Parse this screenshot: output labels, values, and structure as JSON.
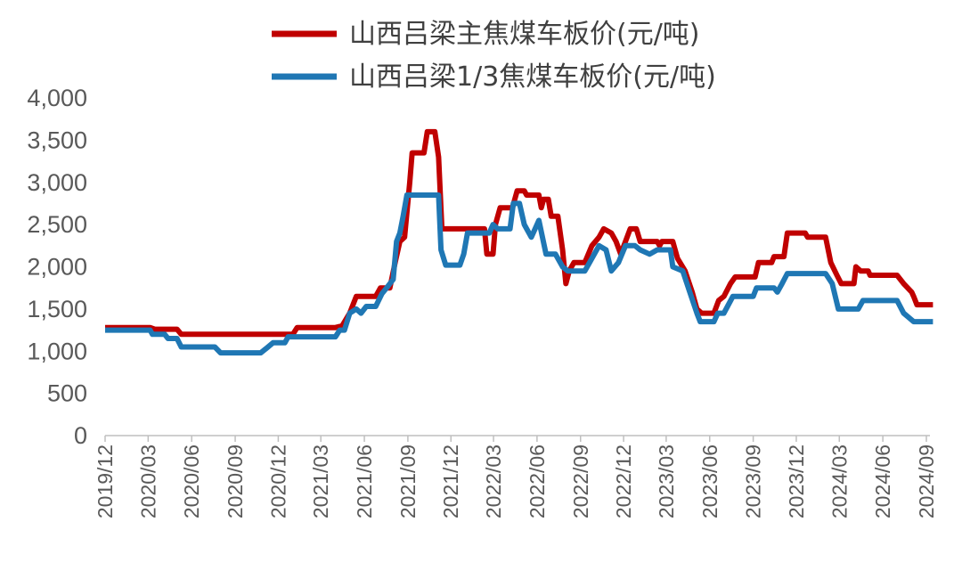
{
  "chart_data": {
    "type": "line",
    "title": "",
    "xlabel": "",
    "ylabel": "",
    "ylim": [
      0,
      4000
    ],
    "yticks": [
      0,
      500,
      1000,
      1500,
      2000,
      2500,
      3000,
      3500,
      4000
    ],
    "ytick_labels": [
      "0",
      "500",
      "1,000",
      "1,500",
      "2,000",
      "2,500",
      "3,000",
      "3,500",
      "4,000"
    ],
    "x_start": "2019/12",
    "x_end": "2024/09",
    "xticks": [
      "2019/12",
      "2020/03",
      "2020/06",
      "2020/09",
      "2020/12",
      "2021/03",
      "2021/06",
      "2021/09",
      "2021/12",
      "2022/03",
      "2022/06",
      "2022/09",
      "2022/12",
      "2023/03",
      "2023/06",
      "2023/09",
      "2023/12",
      "2024/03",
      "2024/06",
      "2024/09"
    ],
    "legend_position": "top",
    "grid": false,
    "series": [
      {
        "name": "山西吕梁主焦煤车板价(元/吨)",
        "color": "#C00000",
        "points": [
          [
            "2019/12/01",
            1280
          ],
          [
            "2020/03/05",
            1280
          ],
          [
            "2020/03/15",
            1260
          ],
          [
            "2020/05/01",
            1260
          ],
          [
            "2020/05/10",
            1200
          ],
          [
            "2021/01/01",
            1200
          ],
          [
            "2021/01/10",
            1280
          ],
          [
            "2021/04/01",
            1280
          ],
          [
            "2021/04/15",
            1300
          ],
          [
            "2021/05/01",
            1450
          ],
          [
            "2021/05/15",
            1650
          ],
          [
            "2021/06/25",
            1650
          ],
          [
            "2021/07/05",
            1750
          ],
          [
            "2021/07/25",
            1750
          ],
          [
            "2021/08/05",
            2050
          ],
          [
            "2021/08/15",
            2300
          ],
          [
            "2021/08/25",
            2350
          ],
          [
            "2021/09/05",
            3000
          ],
          [
            "2021/09/10",
            3350
          ],
          [
            "2021/10/05",
            3350
          ],
          [
            "2021/10/12",
            3600
          ],
          [
            "2021/10/28",
            3600
          ],
          [
            "2021/11/05",
            3300
          ],
          [
            "2021/11/12",
            2450
          ],
          [
            "2022/02/10",
            2450
          ],
          [
            "2022/02/15",
            2150
          ],
          [
            "2022/02/28",
            2150
          ],
          [
            "2022/03/05",
            2500
          ],
          [
            "2022/03/15",
            2700
          ],
          [
            "2022/04/10",
            2700
          ],
          [
            "2022/04/20",
            2900
          ],
          [
            "2022/05/05",
            2900
          ],
          [
            "2022/05/10",
            2850
          ],
          [
            "2022/06/05",
            2850
          ],
          [
            "2022/06/10",
            2700
          ],
          [
            "2022/06/15",
            2800
          ],
          [
            "2022/06/25",
            2800
          ],
          [
            "2022/07/01",
            2600
          ],
          [
            "2022/07/15",
            2600
          ],
          [
            "2022/07/25",
            2200
          ],
          [
            "2022/08/01",
            1800
          ],
          [
            "2022/08/08",
            1950
          ],
          [
            "2022/08/18",
            2050
          ],
          [
            "2022/09/10",
            2050
          ],
          [
            "2022/09/25",
            2250
          ],
          [
            "2022/10/10",
            2350
          ],
          [
            "2022/10/20",
            2450
          ],
          [
            "2022/11/05",
            2400
          ],
          [
            "2022/11/15",
            2300
          ],
          [
            "2022/11/25",
            2150
          ],
          [
            "2022/12/05",
            2300
          ],
          [
            "2022/12/15",
            2450
          ],
          [
            "2022/12/28",
            2450
          ],
          [
            "2023/01/05",
            2300
          ],
          [
            "2023/02/10",
            2300
          ],
          [
            "2023/02/15",
            2250
          ],
          [
            "2023/02/20",
            2300
          ],
          [
            "2023/03/15",
            2300
          ],
          [
            "2023/03/25",
            2100
          ],
          [
            "2023/04/10",
            1950
          ],
          [
            "2023/04/25",
            1700
          ],
          [
            "2023/05/05",
            1500
          ],
          [
            "2023/05/15",
            1450
          ],
          [
            "2023/06/10",
            1450
          ],
          [
            "2023/06/20",
            1600
          ],
          [
            "2023/07/01",
            1650
          ],
          [
            "2023/07/15",
            1800
          ],
          [
            "2023/07/25",
            1880
          ],
          [
            "2023/09/05",
            1880
          ],
          [
            "2023/09/12",
            2050
          ],
          [
            "2023/10/10",
            2050
          ],
          [
            "2023/10/15",
            2120
          ],
          [
            "2023/11/05",
            2120
          ],
          [
            "2023/11/12",
            2400
          ],
          [
            "2023/12/20",
            2400
          ],
          [
            "2023/12/25",
            2350
          ],
          [
            "2024/02/01",
            2350
          ],
          [
            "2024/02/12",
            2050
          ],
          [
            "2024/02/25",
            1900
          ],
          [
            "2024/03/05",
            1800
          ],
          [
            "2024/04/01",
            1800
          ],
          [
            "2024/04/05",
            2000
          ],
          [
            "2024/04/15",
            1950
          ],
          [
            "2024/05/01",
            1950
          ],
          [
            "2024/05/05",
            1900
          ],
          [
            "2024/07/01",
            1900
          ],
          [
            "2024/07/15",
            1800
          ],
          [
            "2024/08/01",
            1700
          ],
          [
            "2024/08/05",
            1650
          ],
          [
            "2024/08/12",
            1550
          ],
          [
            "2024/09/15",
            1550
          ]
        ]
      },
      {
        "name": "山西吕梁1/3焦煤车板价(元/吨)",
        "color": "#1F77B4",
        "points": [
          [
            "2019/12/01",
            1250
          ],
          [
            "2020/03/05",
            1250
          ],
          [
            "2020/03/10",
            1200
          ],
          [
            "2020/04/05",
            1200
          ],
          [
            "2020/04/12",
            1150
          ],
          [
            "2020/05/01",
            1150
          ],
          [
            "2020/05/10",
            1050
          ],
          [
            "2020/07/20",
            1050
          ],
          [
            "2020/08/01",
            980
          ],
          [
            "2020/10/25",
            980
          ],
          [
            "2020/11/05",
            1030
          ],
          [
            "2020/11/20",
            1100
          ],
          [
            "2020/12/15",
            1100
          ],
          [
            "2020/12/22",
            1170
          ],
          [
            "2021/04/01",
            1170
          ],
          [
            "2021/04/10",
            1250
          ],
          [
            "2021/04/20",
            1250
          ],
          [
            "2021/05/01",
            1450
          ],
          [
            "2021/05/15",
            1500
          ],
          [
            "2021/05/25",
            1450
          ],
          [
            "2021/06/05",
            1530
          ],
          [
            "2021/06/25",
            1530
          ],
          [
            "2021/07/08",
            1680
          ],
          [
            "2021/07/18",
            1750
          ],
          [
            "2021/08/01",
            1850
          ],
          [
            "2021/08/08",
            2300
          ],
          [
            "2021/08/15",
            2400
          ],
          [
            "2021/08/22",
            2600
          ],
          [
            "2021/08/30",
            2850
          ],
          [
            "2021/11/05",
            2850
          ],
          [
            "2021/11/10",
            2200
          ],
          [
            "2021/11/20",
            2020
          ],
          [
            "2021/12/20",
            2020
          ],
          [
            "2021/12/28",
            2150
          ],
          [
            "2022/01/05",
            2400
          ],
          [
            "2022/02/20",
            2400
          ],
          [
            "2022/02/28",
            2500
          ],
          [
            "2022/03/10",
            2450
          ],
          [
            "2022/04/05",
            2450
          ],
          [
            "2022/04/12",
            2750
          ],
          [
            "2022/04/25",
            2750
          ],
          [
            "2022/05/05",
            2500
          ],
          [
            "2022/05/20",
            2350
          ],
          [
            "2022/06/05",
            2550
          ],
          [
            "2022/06/20",
            2150
          ],
          [
            "2022/07/10",
            2150
          ],
          [
            "2022/07/25",
            2000
          ],
          [
            "2022/08/05",
            1950
          ],
          [
            "2022/09/10",
            1950
          ],
          [
            "2022/09/20",
            2050
          ],
          [
            "2022/10/10",
            2250
          ],
          [
            "2022/10/25",
            2200
          ],
          [
            "2022/11/05",
            1950
          ],
          [
            "2022/11/20",
            2050
          ],
          [
            "2022/12/05",
            2250
          ],
          [
            "2022/12/25",
            2250
          ],
          [
            "2023/01/05",
            2200
          ],
          [
            "2023/01/25",
            2150
          ],
          [
            "2023/02/10",
            2200
          ],
          [
            "2023/03/10",
            2200
          ],
          [
            "2023/03/15",
            2000
          ],
          [
            "2023/04/05",
            1950
          ],
          [
            "2023/04/20",
            1700
          ],
          [
            "2023/05/05",
            1450
          ],
          [
            "2023/05/12",
            1350
          ],
          [
            "2023/06/10",
            1350
          ],
          [
            "2023/06/18",
            1450
          ],
          [
            "2023/07/01",
            1450
          ],
          [
            "2023/07/20",
            1650
          ],
          [
            "2023/09/01",
            1650
          ],
          [
            "2023/09/08",
            1750
          ],
          [
            "2023/10/15",
            1750
          ],
          [
            "2023/10/22",
            1700
          ],
          [
            "2023/11/01",
            1800
          ],
          [
            "2023/11/12",
            1920
          ],
          [
            "2024/02/01",
            1920
          ],
          [
            "2024/02/15",
            1800
          ],
          [
            "2024/02/28",
            1500
          ],
          [
            "2024/04/10",
            1500
          ],
          [
            "2024/04/20",
            1600
          ],
          [
            "2024/07/01",
            1600
          ],
          [
            "2024/07/15",
            1450
          ],
          [
            "2024/08/05",
            1350
          ],
          [
            "2024/09/15",
            1350
          ]
        ]
      }
    ]
  }
}
